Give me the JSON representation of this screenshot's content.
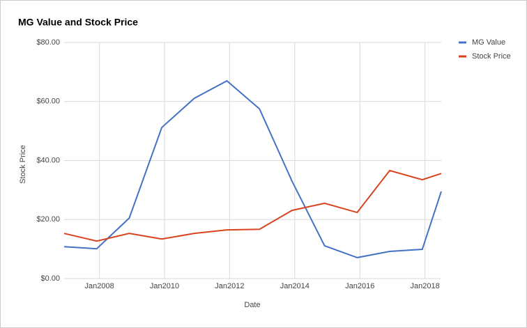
{
  "chart_data": {
    "type": "line",
    "title": "MG Value and Stock Price",
    "x_label": "Date",
    "y_label": "Stock Price",
    "x": [
      "2006-12",
      "2007-12",
      "2008-12",
      "2009-12",
      "2010-12",
      "2011-12",
      "2012-12",
      "2013-12",
      "2014-12",
      "2015-12",
      "2016-12",
      "2017-12",
      "2018-07"
    ],
    "xlim": [
      "2006-12",
      "2018-07"
    ],
    "xticks": [
      {
        "value": "2008-01",
        "label": "Jan2008"
      },
      {
        "value": "2010-01",
        "label": "Jan2010"
      },
      {
        "value": "2012-01",
        "label": "Jan2012"
      },
      {
        "value": "2014-01",
        "label": "Jan2014"
      },
      {
        "value": "2016-01",
        "label": "Jan2016"
      },
      {
        "value": "2018-01",
        "label": "Jan2018"
      }
    ],
    "ylim": [
      0,
      80
    ],
    "yticks": [
      {
        "value": 0,
        "label": "$0.00"
      },
      {
        "value": 20,
        "label": "$20.00"
      },
      {
        "value": 40,
        "label": "$40.00"
      },
      {
        "value": 60,
        "label": "$60.00"
      },
      {
        "value": 80,
        "label": "$80.00"
      }
    ],
    "grid": true,
    "legend": "right",
    "series": [
      {
        "name": "MG Value",
        "color": "#4472c4",
        "values": [
          10.8,
          10.1,
          20.5,
          51.2,
          61.1,
          67,
          57.5,
          33,
          11.1,
          7.1,
          9.2,
          9.9,
          29.5
        ]
      },
      {
        "name": "Stock Price",
        "color": "#d8431e",
        "values": [
          15.3,
          12.7,
          15.3,
          13.4,
          15.3,
          16.5,
          16.7,
          23.1,
          25.5,
          22.4,
          36.6,
          33.5,
          35.6
        ]
      }
    ]
  }
}
